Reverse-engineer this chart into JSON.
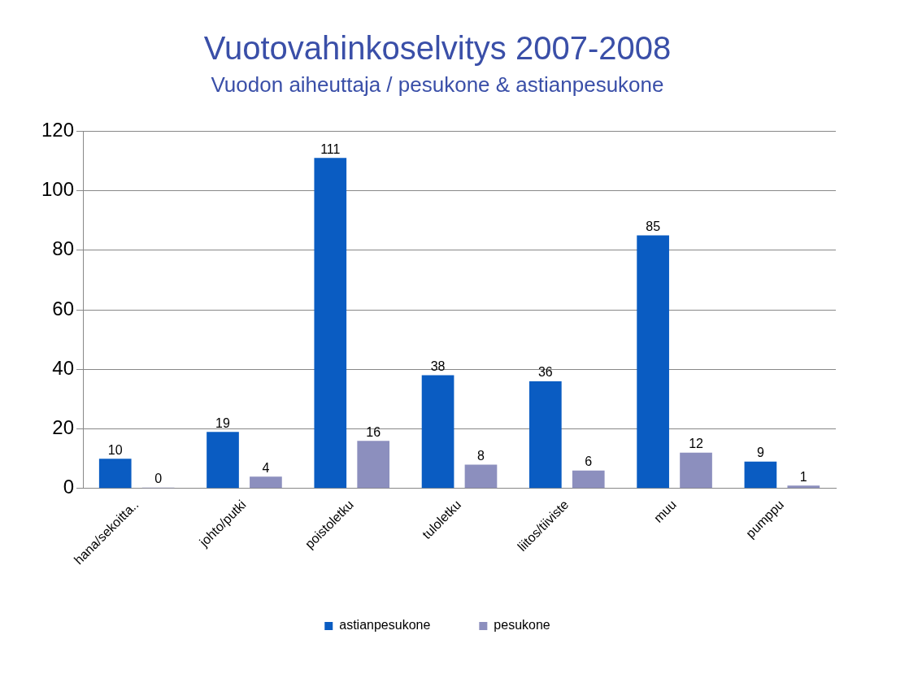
{
  "chart_data": {
    "type": "bar",
    "title": "Vuotovahinkoselvitys 2007-2008",
    "subtitle": "Vuodon aiheuttaja / pesukone & astianpesukone",
    "categories": [
      "hana/sekoitta..",
      "johto/putki",
      "poistoletku",
      "tuloletku",
      "liitos/tiiviste",
      "muu",
      "pumppu"
    ],
    "series": [
      {
        "name": "astianpesukone",
        "color": "#0a5cc2",
        "values": [
          10,
          19,
          111,
          38,
          36,
          85,
          9
        ]
      },
      {
        "name": "pesukone",
        "color": "#8c8fbe",
        "values": [
          0,
          4,
          16,
          8,
          6,
          12,
          1
        ]
      }
    ],
    "ylim": [
      0,
      120
    ],
    "yticks": [
      0,
      20,
      40,
      60,
      80,
      100,
      120
    ],
    "grid": "y",
    "legend": "bottom",
    "data_labels": true
  }
}
